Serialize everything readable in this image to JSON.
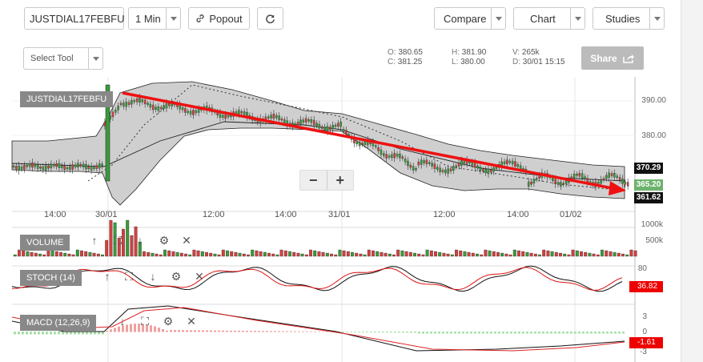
{
  "toolbar": {
    "symbol": "JUSTDIAL17FEBFU",
    "interval": "1 Min",
    "popout": "Popout",
    "compare": "Compare",
    "chart": "Chart",
    "studies": "Studies",
    "select_tool": "Select Tool",
    "share": "Share"
  },
  "ohlc": {
    "o_label": "O:",
    "o": "380.65",
    "h_label": "H:",
    "h": "381.90",
    "v_label": "V:",
    "v": "265k",
    "c_label": "C:",
    "c": "381.25",
    "l_label": "L:",
    "l": "380.00",
    "d_label": "D:",
    "d": "30/01 15:15"
  },
  "main_panel": {
    "label": "JUSTDIAL17FEBFU",
    "price_ticks": [
      "390.00",
      "380.00"
    ],
    "time_ticks": [
      "14:00",
      "30/01",
      "12:00",
      "14:00",
      "31/01",
      "12:00",
      "14:00",
      "01/02"
    ],
    "tag_upper": "370.29",
    "tag_last": "365.20",
    "tag_lower": "361.62",
    "zoom_out": "−",
    "zoom_in": "+"
  },
  "volume_panel": {
    "label": "VOLUME",
    "ticks": [
      "1000k",
      "500k"
    ]
  },
  "stoch_panel": {
    "label": "STOCH (14)",
    "ticks": [
      "80"
    ],
    "value": "36.82"
  },
  "macd_panel": {
    "label": "MACD (12,26,9)",
    "ticks": [
      "3",
      "0",
      "-3"
    ],
    "value": "-1.61"
  },
  "colors": {
    "up": "#3a9a3a",
    "down": "#d04040",
    "trend": "#ee1111",
    "band": "#cfcfcf",
    "stoch_k": "#111111",
    "stoch_d": "#dd1111"
  }
}
